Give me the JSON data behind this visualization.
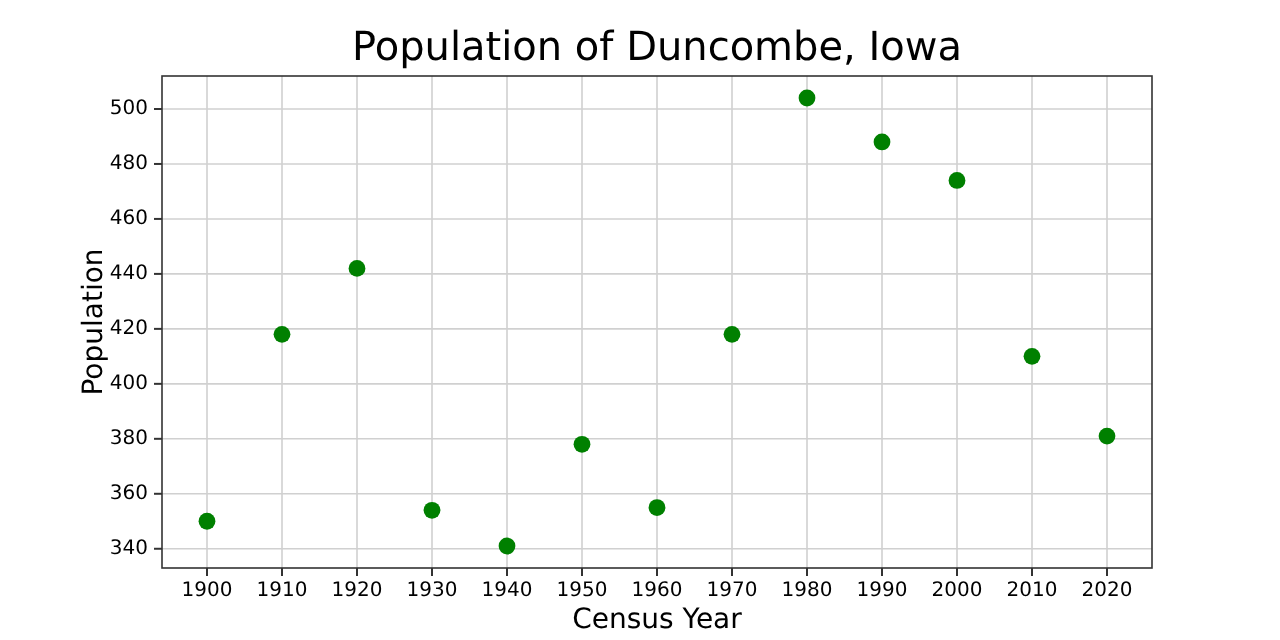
{
  "chart_data": {
    "type": "scatter",
    "title": "Population of Duncombe, Iowa",
    "xlabel": "Census Year",
    "ylabel": "Population",
    "x": [
      1900,
      1910,
      1920,
      1930,
      1940,
      1950,
      1960,
      1970,
      1980,
      1990,
      2000,
      2010,
      2020
    ],
    "series": [
      {
        "color": "#008000",
        "values": [
          350,
          418,
          442,
          354,
          341,
          378,
          355,
          418,
          504,
          488,
          474,
          410,
          381
        ]
      }
    ],
    "xlim": [
      1894,
      2026
    ],
    "xticks": [
      1900,
      1910,
      1920,
      1930,
      1940,
      1950,
      1960,
      1970,
      1980,
      1990,
      2000,
      2010,
      2020
    ],
    "ylim": [
      333,
      512
    ],
    "yticks": [
      340,
      360,
      380,
      400,
      420,
      440,
      460,
      480,
      500
    ],
    "grid": true,
    "marker": "circle"
  }
}
